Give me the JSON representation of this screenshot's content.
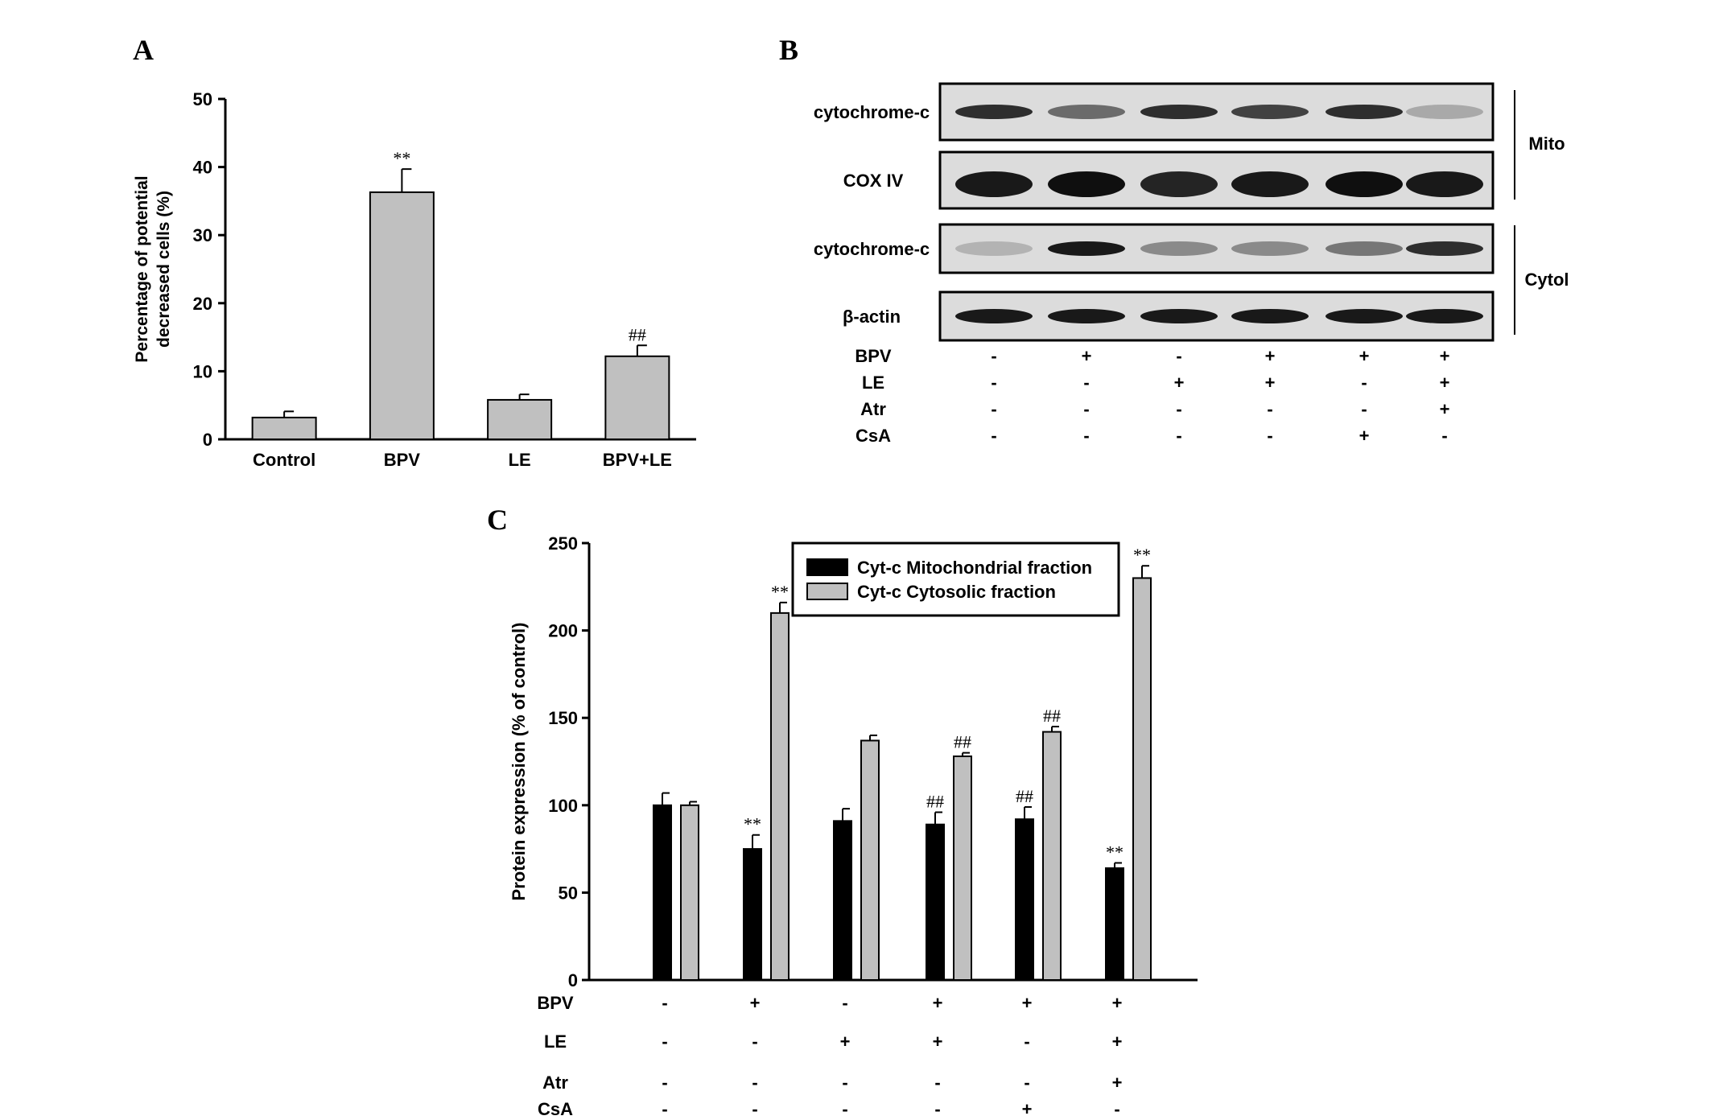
{
  "panels": {
    "a": "A",
    "b": "B",
    "c": "C"
  },
  "chart_data": [
    {
      "type": "bar",
      "panel": "A",
      "ylabel": [
        "Percentage of potential",
        "decreased cells (%)"
      ],
      "categories": [
        "Control",
        "BPV",
        "LE",
        "BPV+LE"
      ],
      "values": [
        3.2,
        36.3,
        5.8,
        12.2
      ],
      "errors": [
        0.9,
        3.4,
        0.8,
        1.6
      ],
      "significance": [
        "",
        "**",
        "",
        "##"
      ],
      "ylim": [
        0,
        50
      ],
      "yticks": [
        "0",
        "10",
        "20",
        "30",
        "40",
        "50"
      ],
      "bar_color": "#c0c0c0"
    },
    {
      "type": "bar",
      "panel": "C",
      "ylabel": "Protein expression (% of control)",
      "group_count": 6,
      "series": [
        {
          "name": "Cyt-c Mitochondrial fraction",
          "color": "#000000",
          "values": [
            100,
            75,
            91,
            89,
            92,
            64
          ],
          "errors": [
            7,
            8,
            7,
            7,
            7,
            3
          ],
          "significance": [
            "",
            "**",
            "",
            "##",
            "##",
            "**"
          ]
        },
        {
          "name": "Cyt-c Cytosolic fraction",
          "color": "#c0c0c0",
          "values": [
            100,
            210,
            137,
            128,
            142,
            230
          ],
          "errors": [
            2,
            6,
            3,
            2,
            3,
            7
          ],
          "significance": [
            "",
            "**",
            "",
            "##",
            "##",
            "**"
          ]
        }
      ],
      "ylim": [
        0,
        250
      ],
      "yticks": [
        "0",
        "50",
        "100",
        "150",
        "200",
        "250"
      ],
      "treatments": [
        {
          "label": "BPV",
          "signs": [
            "-",
            "+",
            "-",
            "+",
            "+",
            "+"
          ]
        },
        {
          "label": "LE",
          "signs": [
            "-",
            "-",
            "+",
            "+",
            "-",
            "+"
          ]
        },
        {
          "label": "Atr",
          "signs": [
            "-",
            "-",
            "-",
            "-",
            "-",
            "+"
          ]
        },
        {
          "label": "CsA",
          "signs": [
            "-",
            "-",
            "-",
            "-",
            "+",
            "-"
          ]
        }
      ],
      "legend": [
        "Cyt-c Mitochondrial fraction",
        "Cyt-c Cytosolic fraction"
      ]
    }
  ],
  "blot": {
    "rows": [
      {
        "label": "cytochrome-c",
        "intensity": [
          0.85,
          0.55,
          0.85,
          0.75,
          0.85,
          0.25
        ]
      },
      {
        "label": "COX IV",
        "intensity": [
          0.95,
          1.0,
          0.9,
          0.95,
          1.0,
          0.95
        ]
      },
      {
        "label": "cytochrome-c",
        "intensity": [
          0.2,
          0.95,
          0.4,
          0.4,
          0.5,
          0.85
        ]
      },
      {
        "label": "β-actin",
        "intensity": [
          0.95,
          0.95,
          0.95,
          0.95,
          0.95,
          0.95
        ]
      }
    ],
    "groups": [
      {
        "label": "Mito",
        "rows": [
          0,
          1
        ]
      },
      {
        "label": "Cytol",
        "rows": [
          2,
          3
        ]
      }
    ],
    "treatments": [
      {
        "label": "BPV",
        "signs": [
          "-",
          "+",
          "-",
          "+",
          "+",
          "+"
        ]
      },
      {
        "label": "LE",
        "signs": [
          "-",
          "-",
          "+",
          "+",
          "-",
          "+"
        ]
      },
      {
        "label": "Atr",
        "signs": [
          "-",
          "-",
          "-",
          "-",
          "-",
          "+"
        ]
      },
      {
        "label": "CsA",
        "signs": [
          "-",
          "-",
          "-",
          "-",
          "+",
          "-"
        ]
      }
    ]
  }
}
